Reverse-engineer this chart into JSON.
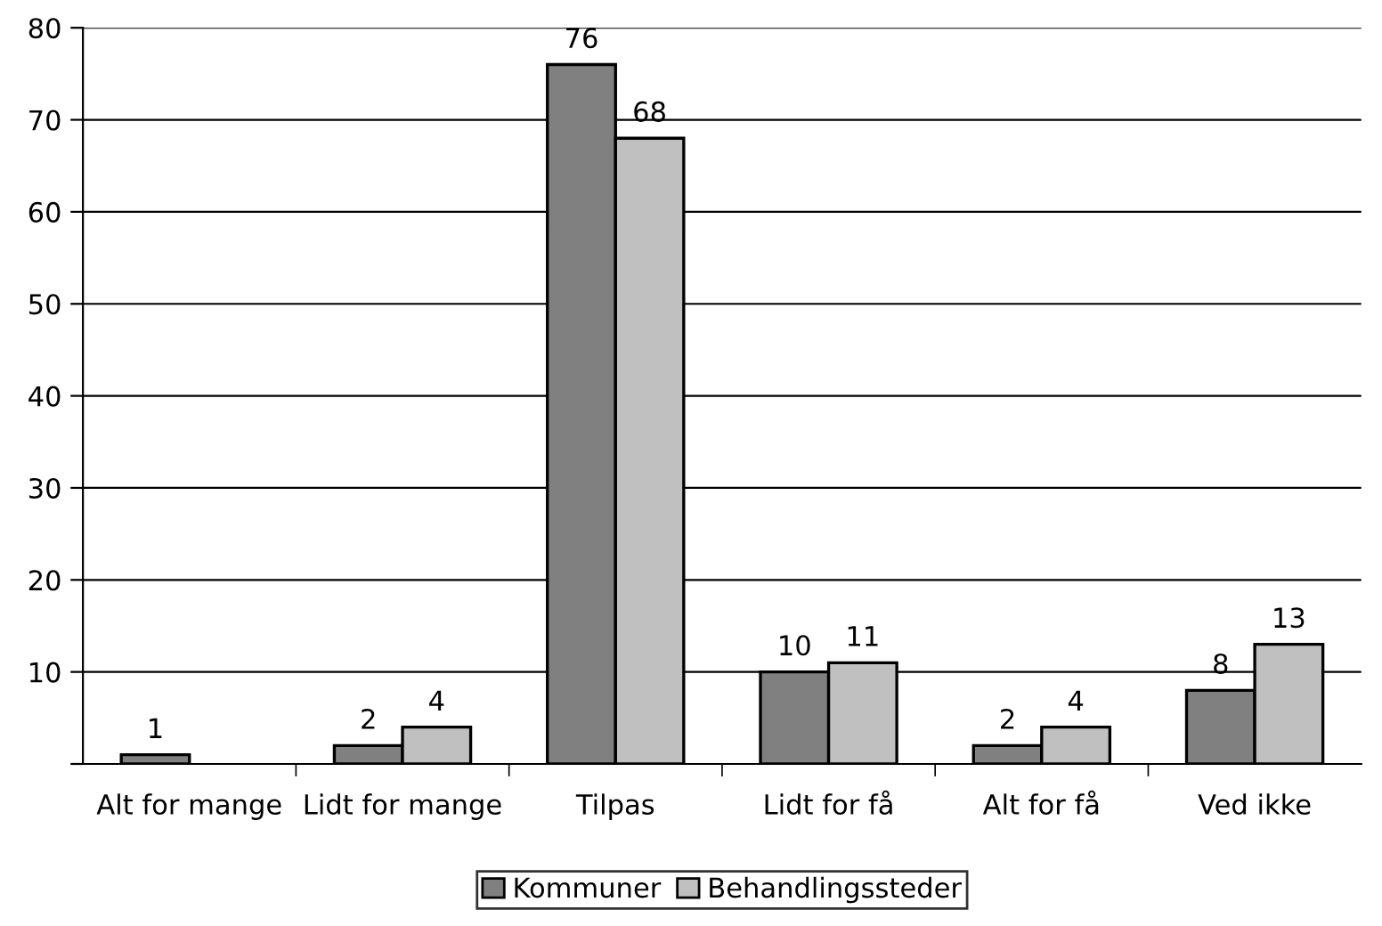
{
  "chart_data": {
    "type": "bar",
    "categories": [
      "Alt for mange",
      "Lidt for mange",
      "Tilpas",
      "Lidt for få",
      "Alt for få",
      "Ved ikke"
    ],
    "series": [
      {
        "name": "Kommuner",
        "color": "#808080",
        "values": [
          1,
          2,
          76,
          10,
          2,
          8
        ]
      },
      {
        "name": "Behandlingssteder",
        "color": "#c0c0c0",
        "values": [
          null,
          4,
          68,
          11,
          4,
          13
        ]
      }
    ],
    "ylim": [
      0,
      80
    ],
    "yticks": [
      {
        "value": 0,
        "label": null
      },
      10,
      20,
      30,
      40,
      50,
      60,
      70,
      80
    ],
    "grid": "y",
    "legend": "bottom",
    "data_labels": true
  }
}
